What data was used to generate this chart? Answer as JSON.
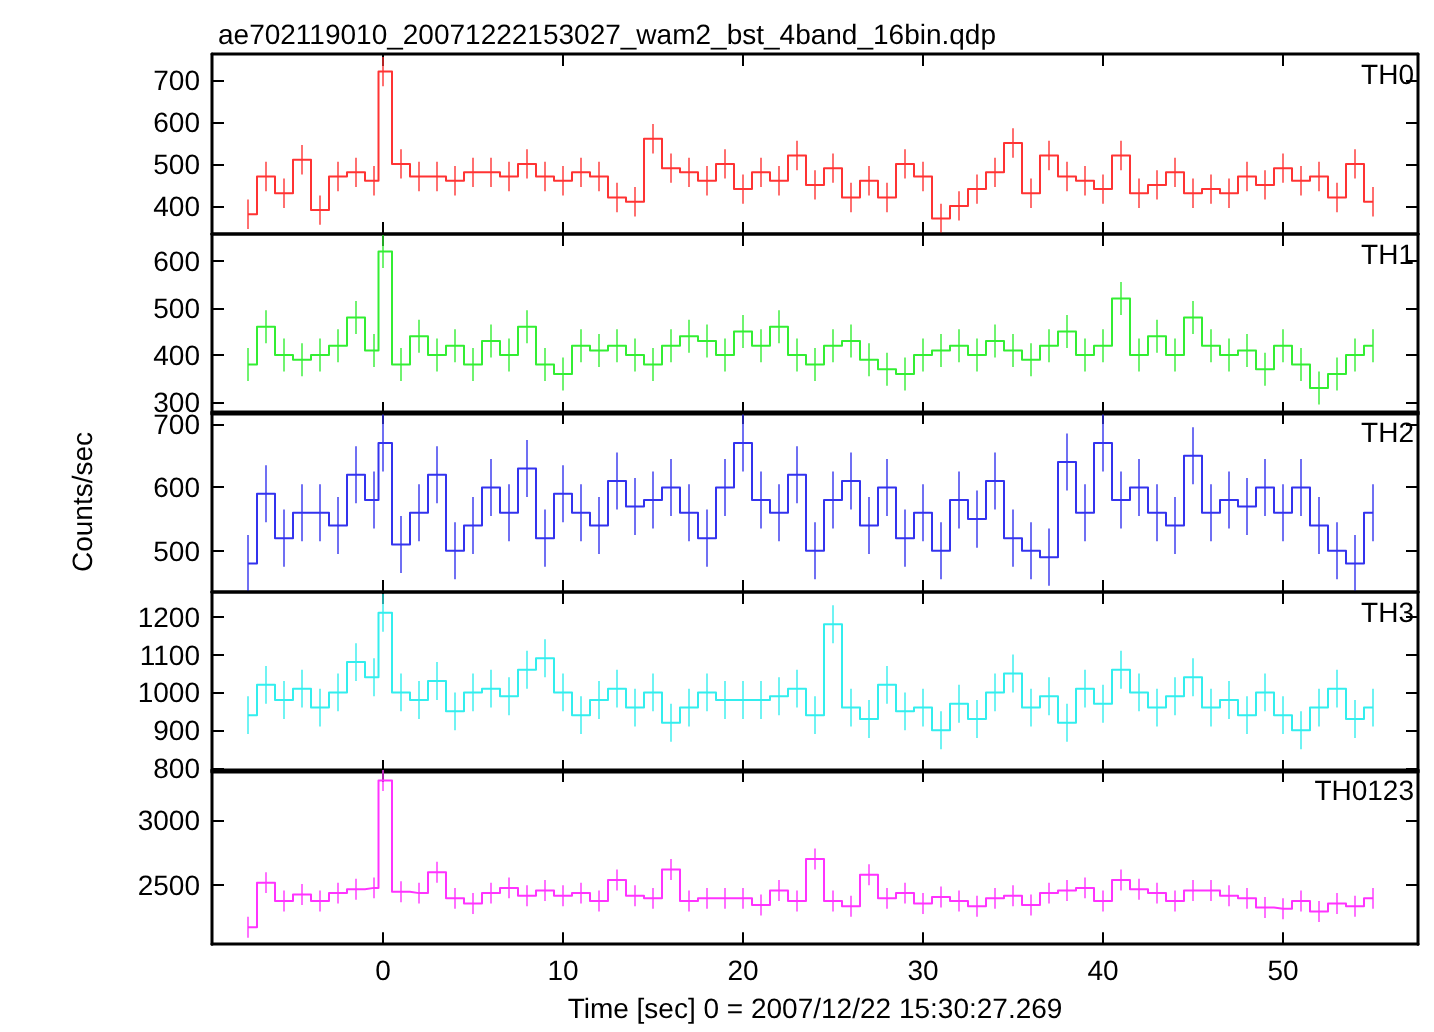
{
  "chart_data": [
    {
      "type": "step",
      "title": "ae702119010_20071222153027_wam2_bst_4band_16bin.qdp",
      "annotations": [
        "TH0"
      ],
      "tick_labels": "y",
      "x": [
        -7.5,
        -6.5,
        -5.5,
        -4.5,
        -3.5,
        -2.5,
        -1.5,
        -0.5,
        0,
        1,
        2,
        3,
        4,
        5,
        6,
        7,
        8,
        9,
        10,
        11,
        12,
        13,
        14,
        15,
        16,
        17,
        18,
        19,
        20,
        21,
        22,
        23,
        24,
        25,
        26,
        27,
        28,
        29,
        30,
        31,
        32,
        33,
        34,
        35,
        36,
        37,
        38,
        39,
        40,
        41,
        42,
        43,
        44,
        45,
        46,
        47,
        48,
        49,
        50,
        51,
        52,
        53,
        54,
        55
      ],
      "xlim": [
        -9.5,
        57.5
      ],
      "xticks": [
        0,
        10,
        20,
        30,
        40,
        50
      ],
      "ylim": [
        333,
        762
      ],
      "yticks": [
        400,
        500,
        600,
        700
      ],
      "series": [
        {
          "color": "#ff3333",
          "values": [
            380,
            470,
            430,
            510,
            390,
            470,
            480,
            460,
            720,
            500,
            470,
            470,
            460,
            480,
            480,
            470,
            500,
            470,
            460,
            480,
            470,
            420,
            410,
            560,
            490,
            480,
            460,
            500,
            440,
            480,
            460,
            520,
            450,
            490,
            420,
            460,
            420,
            500,
            470,
            370,
            400,
            440,
            480,
            550,
            430,
            520,
            470,
            460,
            440,
            520,
            430,
            450,
            480,
            430,
            440,
            430,
            470,
            450,
            490,
            460,
            470,
            420,
            500,
            410
          ],
          "errors": [
            35,
            35,
            35,
            35,
            35,
            35,
            35,
            35,
            35,
            35,
            35,
            35,
            35,
            35,
            35,
            35,
            35,
            35,
            35,
            35,
            35,
            35,
            35,
            35,
            35,
            35,
            35,
            35,
            35,
            35,
            35,
            35,
            35,
            35,
            35,
            35,
            35,
            35,
            35,
            35,
            35,
            35,
            35,
            35,
            35,
            35,
            35,
            35,
            35,
            35,
            35,
            35,
            35,
            35,
            35,
            35,
            35,
            35,
            35,
            35,
            35,
            35,
            35,
            35
          ]
        }
      ]
    },
    {
      "type": "step",
      "annotations": [
        "TH1"
      ],
      "tick_labels": "y",
      "x": [
        -7.5,
        -6.5,
        -5.5,
        -4.5,
        -3.5,
        -2.5,
        -1.5,
        -0.5,
        0,
        1,
        2,
        3,
        4,
        5,
        6,
        7,
        8,
        9,
        10,
        11,
        12,
        13,
        14,
        15,
        16,
        17,
        18,
        19,
        20,
        21,
        22,
        23,
        24,
        25,
        26,
        27,
        28,
        29,
        30,
        31,
        32,
        33,
        34,
        35,
        36,
        37,
        38,
        39,
        40,
        41,
        42,
        43,
        44,
        45,
        46,
        47,
        48,
        49,
        50,
        51,
        52,
        53,
        54,
        55
      ],
      "xlim": [
        -9.5,
        57.5
      ],
      "xticks": [
        0,
        10,
        20,
        30,
        40,
        50
      ],
      "ylim": [
        275,
        657
      ],
      "yticks": [
        300,
        400,
        500,
        600
      ],
      "series": [
        {
          "color": "#33ee33",
          "values": [
            380,
            460,
            400,
            390,
            400,
            420,
            480,
            410,
            620,
            380,
            440,
            400,
            420,
            380,
            430,
            400,
            460,
            380,
            360,
            420,
            410,
            420,
            400,
            380,
            420,
            440,
            430,
            400,
            450,
            420,
            460,
            400,
            380,
            420,
            430,
            390,
            370,
            360,
            400,
            410,
            420,
            400,
            430,
            410,
            390,
            420,
            450,
            400,
            420,
            520,
            400,
            440,
            400,
            480,
            420,
            400,
            410,
            370,
            420,
            380,
            330,
            360,
            400,
            420
          ],
          "errors": [
            35,
            35,
            35,
            35,
            35,
            35,
            35,
            35,
            35,
            35,
            35,
            35,
            35,
            35,
            35,
            35,
            35,
            35,
            35,
            35,
            35,
            35,
            35,
            35,
            35,
            35,
            35,
            35,
            35,
            35,
            35,
            35,
            35,
            35,
            35,
            35,
            35,
            35,
            35,
            35,
            35,
            35,
            35,
            35,
            35,
            35,
            35,
            35,
            35,
            35,
            35,
            35,
            35,
            35,
            35,
            35,
            35,
            35,
            35,
            35,
            35,
            35,
            35,
            35
          ]
        }
      ]
    },
    {
      "type": "step",
      "ylabel": "Counts/sec",
      "annotations": [
        "TH2"
      ],
      "tick_labels": "y",
      "x": [
        -7.5,
        -6.5,
        -5.5,
        -4.5,
        -3.5,
        -2.5,
        -1.5,
        -0.5,
        0,
        1,
        2,
        3,
        4,
        5,
        6,
        7,
        8,
        9,
        10,
        11,
        12,
        13,
        14,
        15,
        16,
        17,
        18,
        19,
        20,
        21,
        22,
        23,
        24,
        25,
        26,
        27,
        28,
        29,
        30,
        31,
        32,
        33,
        34,
        35,
        36,
        37,
        38,
        39,
        40,
        41,
        42,
        43,
        44,
        45,
        46,
        47,
        48,
        49,
        50,
        51,
        52,
        53,
        54,
        55
      ],
      "xlim": [
        -9.5,
        57.5
      ],
      "xticks": [
        0,
        10,
        20,
        30,
        40,
        50
      ],
      "ylim": [
        435,
        719
      ],
      "yticks": [
        500,
        600,
        700
      ],
      "series": [
        {
          "color": "#3333ee",
          "values": [
            480,
            590,
            520,
            560,
            560,
            540,
            620,
            580,
            670,
            510,
            560,
            620,
            500,
            540,
            600,
            560,
            630,
            520,
            590,
            560,
            540,
            610,
            570,
            580,
            600,
            560,
            520,
            600,
            670,
            580,
            560,
            620,
            500,
            580,
            610,
            540,
            600,
            520,
            560,
            500,
            580,
            550,
            610,
            520,
            500,
            490,
            640,
            560,
            670,
            580,
            600,
            560,
            540,
            650,
            560,
            580,
            570,
            600,
            560,
            600,
            540,
            500,
            480,
            560
          ],
          "errors": [
            45,
            45,
            45,
            45,
            45,
            45,
            45,
            45,
            45,
            45,
            45,
            45,
            45,
            45,
            45,
            45,
            45,
            45,
            45,
            45,
            45,
            45,
            45,
            45,
            45,
            45,
            45,
            45,
            45,
            45,
            45,
            45,
            45,
            45,
            45,
            45,
            45,
            45,
            45,
            45,
            45,
            45,
            45,
            45,
            45,
            45,
            45,
            45,
            45,
            45,
            45,
            45,
            45,
            45,
            45,
            45,
            45,
            45,
            45,
            45,
            45,
            45,
            45,
            45
          ]
        }
      ]
    },
    {
      "type": "step",
      "annotations": [
        "TH3"
      ],
      "tick_labels": "y",
      "x": [
        -7.5,
        -6.5,
        -5.5,
        -4.5,
        -3.5,
        -2.5,
        -1.5,
        -0.5,
        0,
        1,
        2,
        3,
        4,
        5,
        6,
        7,
        8,
        9,
        10,
        11,
        12,
        13,
        14,
        15,
        16,
        17,
        18,
        19,
        20,
        21,
        22,
        23,
        24,
        25,
        26,
        27,
        28,
        29,
        30,
        31,
        32,
        33,
        34,
        35,
        36,
        37,
        38,
        39,
        40,
        41,
        42,
        43,
        44,
        45,
        46,
        47,
        48,
        49,
        50,
        51,
        52,
        53,
        54,
        55
      ],
      "xlim": [
        -9.5,
        57.5
      ],
      "xticks": [
        0,
        10,
        20,
        30,
        40,
        50
      ],
      "ylim": [
        790,
        1265
      ],
      "yticks": [
        800,
        900,
        1000,
        1100,
        1200
      ],
      "series": [
        {
          "color": "#33eeee",
          "values": [
            940,
            1020,
            980,
            1010,
            960,
            1000,
            1080,
            1040,
            1210,
            1000,
            980,
            1030,
            950,
            1000,
            1010,
            990,
            1060,
            1090,
            1000,
            940,
            980,
            1010,
            960,
            1000,
            920,
            960,
            1000,
            980,
            980,
            980,
            990,
            1010,
            940,
            1180,
            960,
            930,
            1020,
            950,
            960,
            900,
            970,
            930,
            1000,
            1050,
            960,
            990,
            920,
            1010,
            970,
            1060,
            1000,
            960,
            990,
            1040,
            960,
            980,
            940,
            1000,
            940,
            900,
            960,
            1010,
            930,
            960
          ],
          "errors": [
            50,
            50,
            50,
            50,
            50,
            50,
            50,
            50,
            50,
            50,
            50,
            50,
            50,
            50,
            50,
            50,
            50,
            50,
            50,
            50,
            50,
            50,
            50,
            50,
            50,
            50,
            50,
            50,
            50,
            50,
            50,
            50,
            50,
            50,
            50,
            50,
            50,
            50,
            50,
            50,
            50,
            50,
            50,
            50,
            50,
            50,
            50,
            50,
            50,
            50,
            50,
            50,
            50,
            50,
            50,
            50,
            50,
            50,
            50,
            50,
            50,
            50,
            50,
            50
          ]
        }
      ]
    },
    {
      "type": "step",
      "xlabel": "Time [sec] 0 = 2007/12/22 15:30:27.269",
      "annotations": [
        "TH0123"
      ],
      "x": [
        -7.5,
        -6.5,
        -5.5,
        -4.5,
        -3.5,
        -2.5,
        -1.5,
        -0.5,
        0,
        1,
        2,
        3,
        4,
        5,
        6,
        7,
        8,
        9,
        10,
        11,
        12,
        13,
        14,
        15,
        16,
        17,
        18,
        19,
        20,
        21,
        22,
        23,
        24,
        25,
        26,
        27,
        28,
        29,
        30,
        31,
        32,
        33,
        34,
        35,
        36,
        37,
        38,
        39,
        40,
        41,
        42,
        43,
        44,
        45,
        46,
        47,
        48,
        49,
        50,
        51,
        52,
        53,
        54,
        55
      ],
      "xlim": [
        -9.5,
        57.5
      ],
      "xticks": [
        0,
        10,
        20,
        30,
        40,
        50
      ],
      "ylim": [
        2050,
        3380
      ],
      "yticks": [
        2500,
        3000
      ],
      "series": [
        {
          "color": "#ff33ff",
          "values": [
            2180,
            2520,
            2380,
            2430,
            2380,
            2440,
            2470,
            2480,
            3300,
            2450,
            2440,
            2600,
            2400,
            2360,
            2440,
            2480,
            2420,
            2460,
            2420,
            2440,
            2380,
            2540,
            2420,
            2400,
            2620,
            2380,
            2400,
            2400,
            2400,
            2350,
            2460,
            2380,
            2700,
            2380,
            2340,
            2580,
            2400,
            2440,
            2360,
            2410,
            2380,
            2340,
            2400,
            2420,
            2350,
            2440,
            2460,
            2480,
            2380,
            2540,
            2470,
            2440,
            2380,
            2460,
            2460,
            2420,
            2400,
            2330,
            2320,
            2380,
            2300,
            2360,
            2340,
            2400
          ],
          "errors": [
            80,
            80,
            80,
            80,
            80,
            80,
            80,
            80,
            80,
            80,
            80,
            80,
            80,
            80,
            80,
            80,
            80,
            80,
            80,
            80,
            80,
            80,
            80,
            80,
            80,
            80,
            80,
            80,
            80,
            80,
            80,
            80,
            80,
            80,
            80,
            80,
            80,
            80,
            80,
            80,
            80,
            80,
            80,
            80,
            80,
            80,
            80,
            80,
            80,
            80,
            80,
            80,
            80,
            80,
            80,
            80,
            80,
            80,
            80,
            80,
            80,
            80,
            80,
            80
          ]
        }
      ]
    }
  ]
}
